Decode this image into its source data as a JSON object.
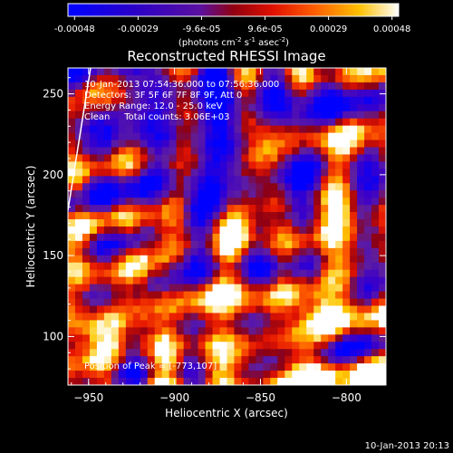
{
  "chart_data": {
    "type": "heatmap",
    "title": "Reconstructed RHESSI Image",
    "xlabel": "Heliocentric X (arcsec)",
    "ylabel": "Heliocentric Y (arcsec)",
    "xlim": [
      -962,
      -777
    ],
    "ylim": [
      70,
      266
    ],
    "xticks": [
      -950,
      -900,
      -850,
      -800
    ],
    "yticks": [
      100,
      150,
      200,
      250
    ],
    "colorbar": {
      "ticks": [
        "-0.00048",
        "-0.00029",
        "-9.6e-05",
        "9.6e-05",
        "0.00029",
        "0.00048"
      ],
      "units_pre": "(photons cm",
      "units_sup1": "-2",
      "units_mid": " s",
      "units_sup2": "-1",
      "units_mid2": " asec",
      "units_sup3": "-2",
      "units_post": ")",
      "colors": [
        "#0000ff",
        "#3300c8",
        "#5010a0",
        "#b00000",
        "#ff3000",
        "#ff8000",
        "#ffd000",
        "#ffffff"
      ]
    },
    "annotations": [
      "10-Jan-2013 07:54:36.000 to 07:56:36.000",
      "Detectors: 3F 5F 6F 7F 8F 9F, Att 0",
      "Energy Range: 12.0 - 25.0 keV",
      "Clean     Total counts: 3.06E+03"
    ],
    "peak_label": "Position of Peak = [-773,107]",
    "peak": [
      -773,
      107
    ]
  },
  "footer": {
    "timestamp": "10-Jan-2013 20:13"
  }
}
